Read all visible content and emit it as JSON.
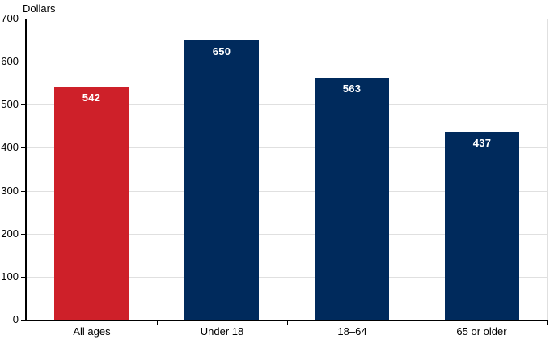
{
  "chart_data": {
    "type": "bar",
    "title": "",
    "ylabel": "Dollars",
    "xlabel": "",
    "categories": [
      "All ages",
      "Under 18",
      "18–64",
      "65 or older"
    ],
    "values": [
      542,
      650,
      563,
      437
    ],
    "value_labels": [
      "542",
      "650",
      "563",
      "437"
    ],
    "bar_colors": [
      "#CE2029",
      "#002A5C",
      "#002A5C",
      "#002A5C"
    ],
    "ylim": [
      0,
      700
    ],
    "yticks": [
      0,
      100,
      200,
      300,
      400,
      500,
      600,
      700
    ],
    "grid": true,
    "legend": "none"
  },
  "colors": {
    "highlight_red": "#CE2029",
    "navy": "#002A5C",
    "gridline": "#E0E0E0",
    "axis": "#000000",
    "background": "#FFFFFF",
    "bar_label_text": "#FFFFFF"
  }
}
